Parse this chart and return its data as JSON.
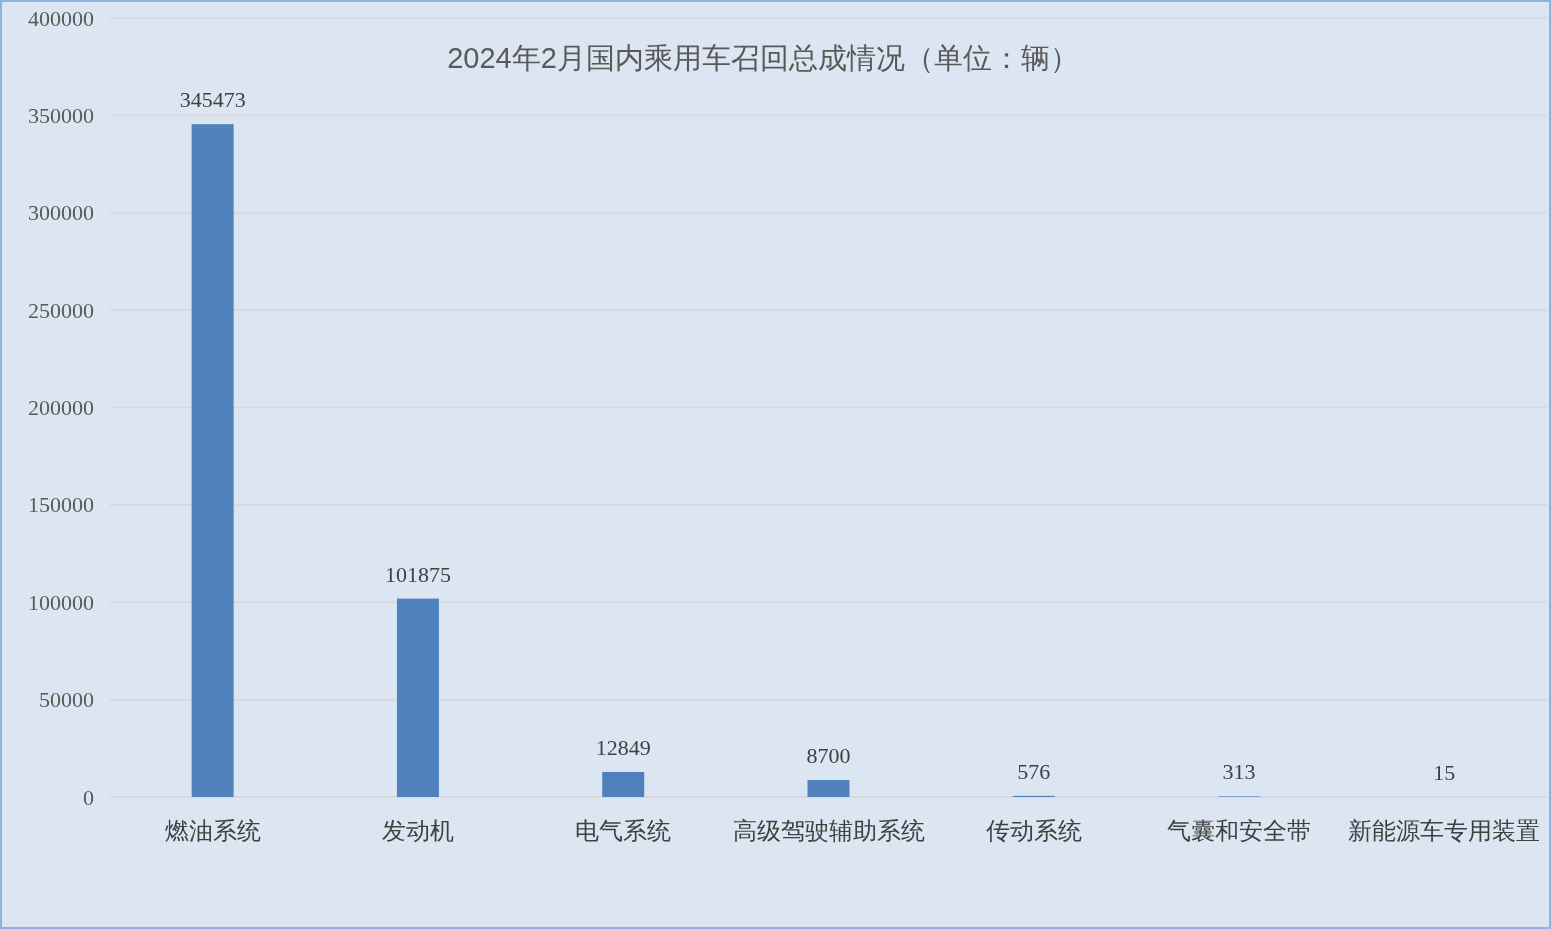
{
  "chart_data": {
    "type": "bar",
    "title": "2024年2月国内乘用车召回总成情况（单位：辆）",
    "categories": [
      "燃油系统",
      "发动机",
      "电气系统",
      "高级驾驶辅助系统",
      "传动系统",
      "气囊和安全带",
      "新能源车专用装置"
    ],
    "values": [
      345473,
      101875,
      12849,
      8700,
      576,
      313,
      15
    ],
    "color": "#4f81bd",
    "ylim": [
      0,
      400000
    ],
    "yticks": [
      0,
      50000,
      100000,
      150000,
      200000,
      250000,
      300000,
      350000,
      400000
    ],
    "grid": "y",
    "data_labels": true
  }
}
